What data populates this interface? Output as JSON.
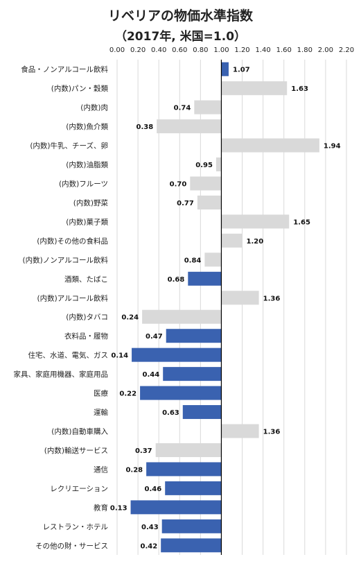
{
  "chart_data": {
    "type": "bar",
    "orientation": "horizontal",
    "title": "リベリアの物価水準指数",
    "subtitle": "（2017年, 米国=1.0）",
    "xlim": [
      0,
      2.2
    ],
    "xticks": [
      "0.00",
      "0.20",
      "0.40",
      "0.60",
      "0.80",
      "1.00",
      "1.20",
      "1.40",
      "1.60",
      "1.80",
      "2.00",
      "2.20"
    ],
    "grid": true,
    "baseline": 1.0,
    "colors": {
      "main": "#3a62b0",
      "sub": "#d9d9d9"
    },
    "categories": [
      {
        "label": "食品・ノンアルコール飲料",
        "value": 1.07,
        "value_label": "1.07",
        "group": "main"
      },
      {
        "label": "(内数)パン・穀類",
        "value": 1.63,
        "value_label": "1.63",
        "group": "sub"
      },
      {
        "label": "(内数)肉",
        "value": 0.74,
        "value_label": "0.74",
        "group": "sub"
      },
      {
        "label": "(内数)魚介類",
        "value": 0.38,
        "value_label": "0.38",
        "group": "sub"
      },
      {
        "label": "(内数)牛乳、チーズ、卵",
        "value": 1.94,
        "value_label": "1.94",
        "group": "sub"
      },
      {
        "label": "(内数)油脂類",
        "value": 0.95,
        "value_label": "0.95",
        "group": "sub"
      },
      {
        "label": "(内数)フルーツ",
        "value": 0.7,
        "value_label": "0.70",
        "group": "sub"
      },
      {
        "label": "(内数)野菜",
        "value": 0.77,
        "value_label": "0.77",
        "group": "sub"
      },
      {
        "label": "(内数)菓子類",
        "value": 1.65,
        "value_label": "1.65",
        "group": "sub"
      },
      {
        "label": "(内数)その他の食料品",
        "value": 1.2,
        "value_label": "1.20",
        "group": "sub"
      },
      {
        "label": "(内数)ノンアルコール飲料",
        "value": 0.84,
        "value_label": "0.84",
        "group": "sub"
      },
      {
        "label": "酒類、たばこ",
        "value": 0.68,
        "value_label": "0.68",
        "group": "main"
      },
      {
        "label": "(内数)アルコール飲料",
        "value": 1.36,
        "value_label": "1.36",
        "group": "sub"
      },
      {
        "label": "(内数)タバコ",
        "value": 0.24,
        "value_label": "0.24",
        "group": "sub"
      },
      {
        "label": "衣料品・履物",
        "value": 0.47,
        "value_label": "0.47",
        "group": "main"
      },
      {
        "label": "住宅、水道、電気、ガス",
        "value": 0.14,
        "value_label": "0.14",
        "group": "main"
      },
      {
        "label": "家具、家庭用機器、家庭用品",
        "value": 0.44,
        "value_label": "0.44",
        "group": "main"
      },
      {
        "label": "医療",
        "value": 0.22,
        "value_label": "0.22",
        "group": "main"
      },
      {
        "label": "運輸",
        "value": 0.63,
        "value_label": "0.63",
        "group": "main"
      },
      {
        "label": "(内数)自動車購入",
        "value": 1.36,
        "value_label": "1.36",
        "group": "sub"
      },
      {
        "label": "(内数)輸送サービス",
        "value": 0.37,
        "value_label": "0.37",
        "group": "sub"
      },
      {
        "label": "通信",
        "value": 0.28,
        "value_label": "0.28",
        "group": "main"
      },
      {
        "label": "レクリエーション",
        "value": 0.46,
        "value_label": "0.46",
        "group": "main"
      },
      {
        "label": "教育",
        "value": 0.13,
        "value_label": "0.13",
        "group": "main"
      },
      {
        "label": "レストラン・ホテル",
        "value": 0.43,
        "value_label": "0.43",
        "group": "main"
      },
      {
        "label": "その他の財・サービス",
        "value": 0.42,
        "value_label": "0.42",
        "group": "main"
      }
    ]
  }
}
